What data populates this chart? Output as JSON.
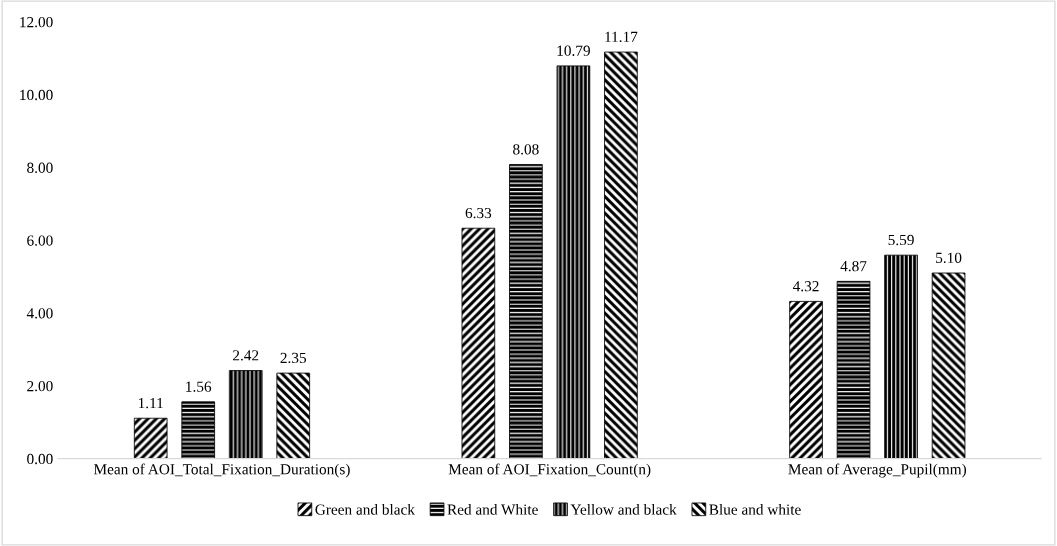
{
  "chart_data": {
    "type": "bar",
    "categories": [
      "Mean of AOI_Total_Fixation_Duration(s)",
      "Mean of AOI_Fixation_Count(n)",
      "Mean of Average_Pupil(mm)"
    ],
    "series": [
      {
        "name": "Green and black",
        "color": "#000000",
        "values": [
          1.11,
          6.33,
          4.32
        ],
        "value_labels": [
          "1.11",
          "6.33",
          "4.32"
        ]
      },
      {
        "name": "Red and White",
        "color": "#000000",
        "values": [
          1.56,
          8.08,
          4.87
        ],
        "value_labels": [
          "1.56",
          "8.08",
          "4.87"
        ]
      },
      {
        "name": "Yellow and black",
        "color": "#000000",
        "values": [
          2.42,
          10.79,
          5.59
        ],
        "value_labels": [
          "2.42",
          "10.79",
          "5.59"
        ]
      },
      {
        "name": "Blue and white",
        "color": "#000000",
        "values": [
          2.35,
          11.17,
          5.1
        ],
        "value_labels": [
          "2.35",
          "11.17",
          "5.10"
        ]
      }
    ],
    "ylim": [
      0,
      12
    ],
    "yticks": [
      {
        "value": 0,
        "label": "0.00"
      },
      {
        "value": 2,
        "label": "2.00"
      },
      {
        "value": 4,
        "label": "4.00"
      },
      {
        "value": 6,
        "label": "6.00"
      },
      {
        "value": 8,
        "label": "8.00"
      },
      {
        "value": 10,
        "label": "10.00"
      },
      {
        "value": 12,
        "label": "12.00"
      }
    ],
    "grid": false,
    "legend": "bottom"
  }
}
